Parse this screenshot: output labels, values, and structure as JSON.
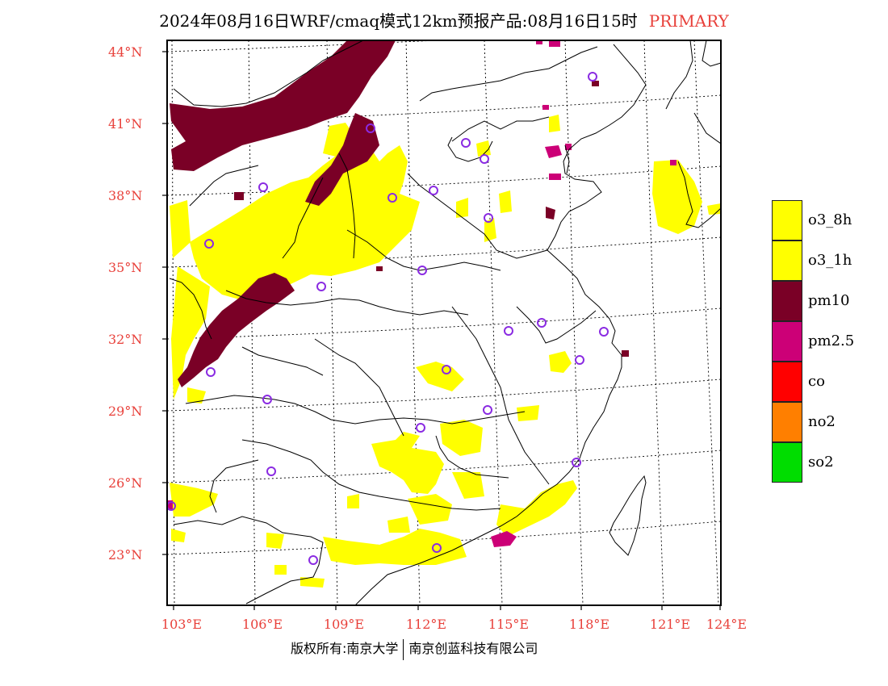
{
  "header": {
    "title": "2024年08月16日WRF/cmaq模式12km预报产品:08月16日15时",
    "tag": "PRIMARY"
  },
  "axes": {
    "lat_labels": [
      "44°N",
      "41°N",
      "38°N",
      "35°N",
      "32°N",
      "29°N",
      "26°N",
      "23°N"
    ],
    "lon_labels": [
      "103°E",
      "106°E",
      "109°E",
      "112°E",
      "115°E",
      "118°E",
      "121°E",
      "124°E"
    ]
  },
  "legend": {
    "items": [
      {
        "label": "o3_8h",
        "color": "#ffff00"
      },
      {
        "label": "o3_1h",
        "color": "#ffff00"
      },
      {
        "label": "pm10",
        "color": "#7a0026"
      },
      {
        "label": "pm2.5",
        "color": "#cc0077"
      },
      {
        "label": "co",
        "color": "#ff0000"
      },
      {
        "label": "no2",
        "color": "#ff7f00"
      },
      {
        "label": "so2",
        "color": "#00dd00"
      }
    ]
  },
  "footer": {
    "copyright_a": "版权所有:南京大学",
    "copyright_b": "南京创蓝科技有限公司"
  },
  "map": {
    "layers": [
      "o3 (yellow)",
      "pm10 (dark red)",
      "pm2.5 (magenta)"
    ],
    "station_marker_color": "#8a2be2"
  }
}
